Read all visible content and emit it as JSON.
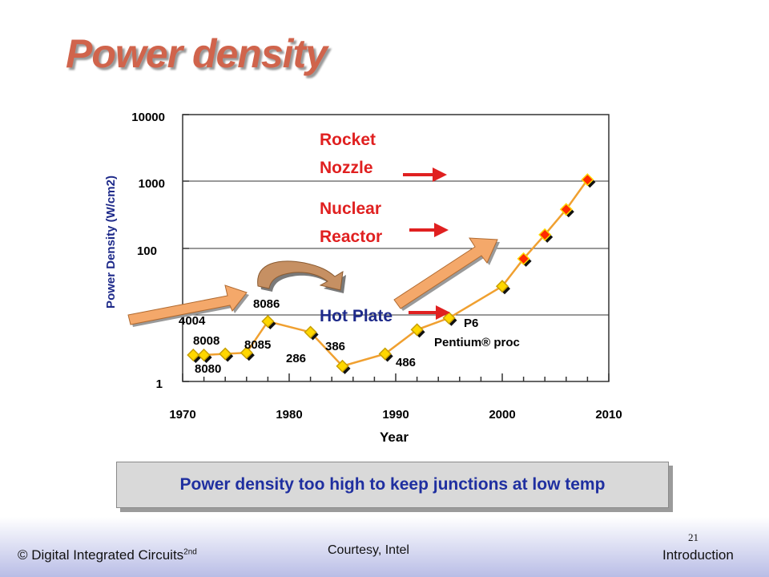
{
  "slide": {
    "title": "Power density",
    "callout": "Power density too high to keep junctions at low temp",
    "footer_left": "© Digital Integrated Circuits",
    "footer_left_sup": "2nd",
    "footer_center": "Courtesy, Intel",
    "footer_right": "Introduction",
    "page_number": "21"
  },
  "chart_data": {
    "type": "line",
    "xlabel": "Year",
    "ylabel": "Power Density (W/cm2)",
    "log_y": true,
    "xlim": [
      1970,
      2010
    ],
    "ylim": [
      1,
      10000
    ],
    "x_ticks": [
      "1970",
      "1980",
      "1990",
      "2000",
      "2010"
    ],
    "y_ticks": [
      "1",
      "100",
      "1000",
      "10000"
    ],
    "grid": "horizontal",
    "series": [
      {
        "name": "",
        "color": "#f0a030",
        "points": [
          {
            "x": 1971,
            "y": 2.5
          },
          {
            "x": 1972,
            "y": 2.5
          },
          {
            "x": 1974,
            "y": 2.6
          },
          {
            "x": 1976,
            "y": 2.7
          },
          {
            "x": 1978,
            "y": 8
          },
          {
            "x": 1982,
            "y": 5.5
          },
          {
            "x": 1985,
            "y": 1.7
          },
          {
            "x": 1989,
            "y": 2.6
          },
          {
            "x": 1992,
            "y": 6
          },
          {
            "x": 1995,
            "y": 9
          },
          {
            "x": 2000,
            "y": 27
          },
          {
            "x": 2002,
            "y": 70
          },
          {
            "x": 2004,
            "y": 160
          },
          {
            "x": 2006,
            "y": 380
          },
          {
            "x": 2008,
            "y": 1050
          }
        ]
      }
    ],
    "chip_labels": [
      "4004",
      "8008",
      "8080",
      "8085",
      "8086",
      "286",
      "386",
      "486",
      "P6",
      "Pentium® proc"
    ],
    "reference_labels": [
      "Rocket",
      "Nozzle",
      "Nuclear",
      "Reactor",
      "Hot Plate"
    ],
    "colors": {
      "line": "#f0a030",
      "marker_early": "#ffd700",
      "marker_recent": "#ff2a00",
      "reference_text": "#e02020",
      "arrow": "#f4a86a"
    }
  }
}
